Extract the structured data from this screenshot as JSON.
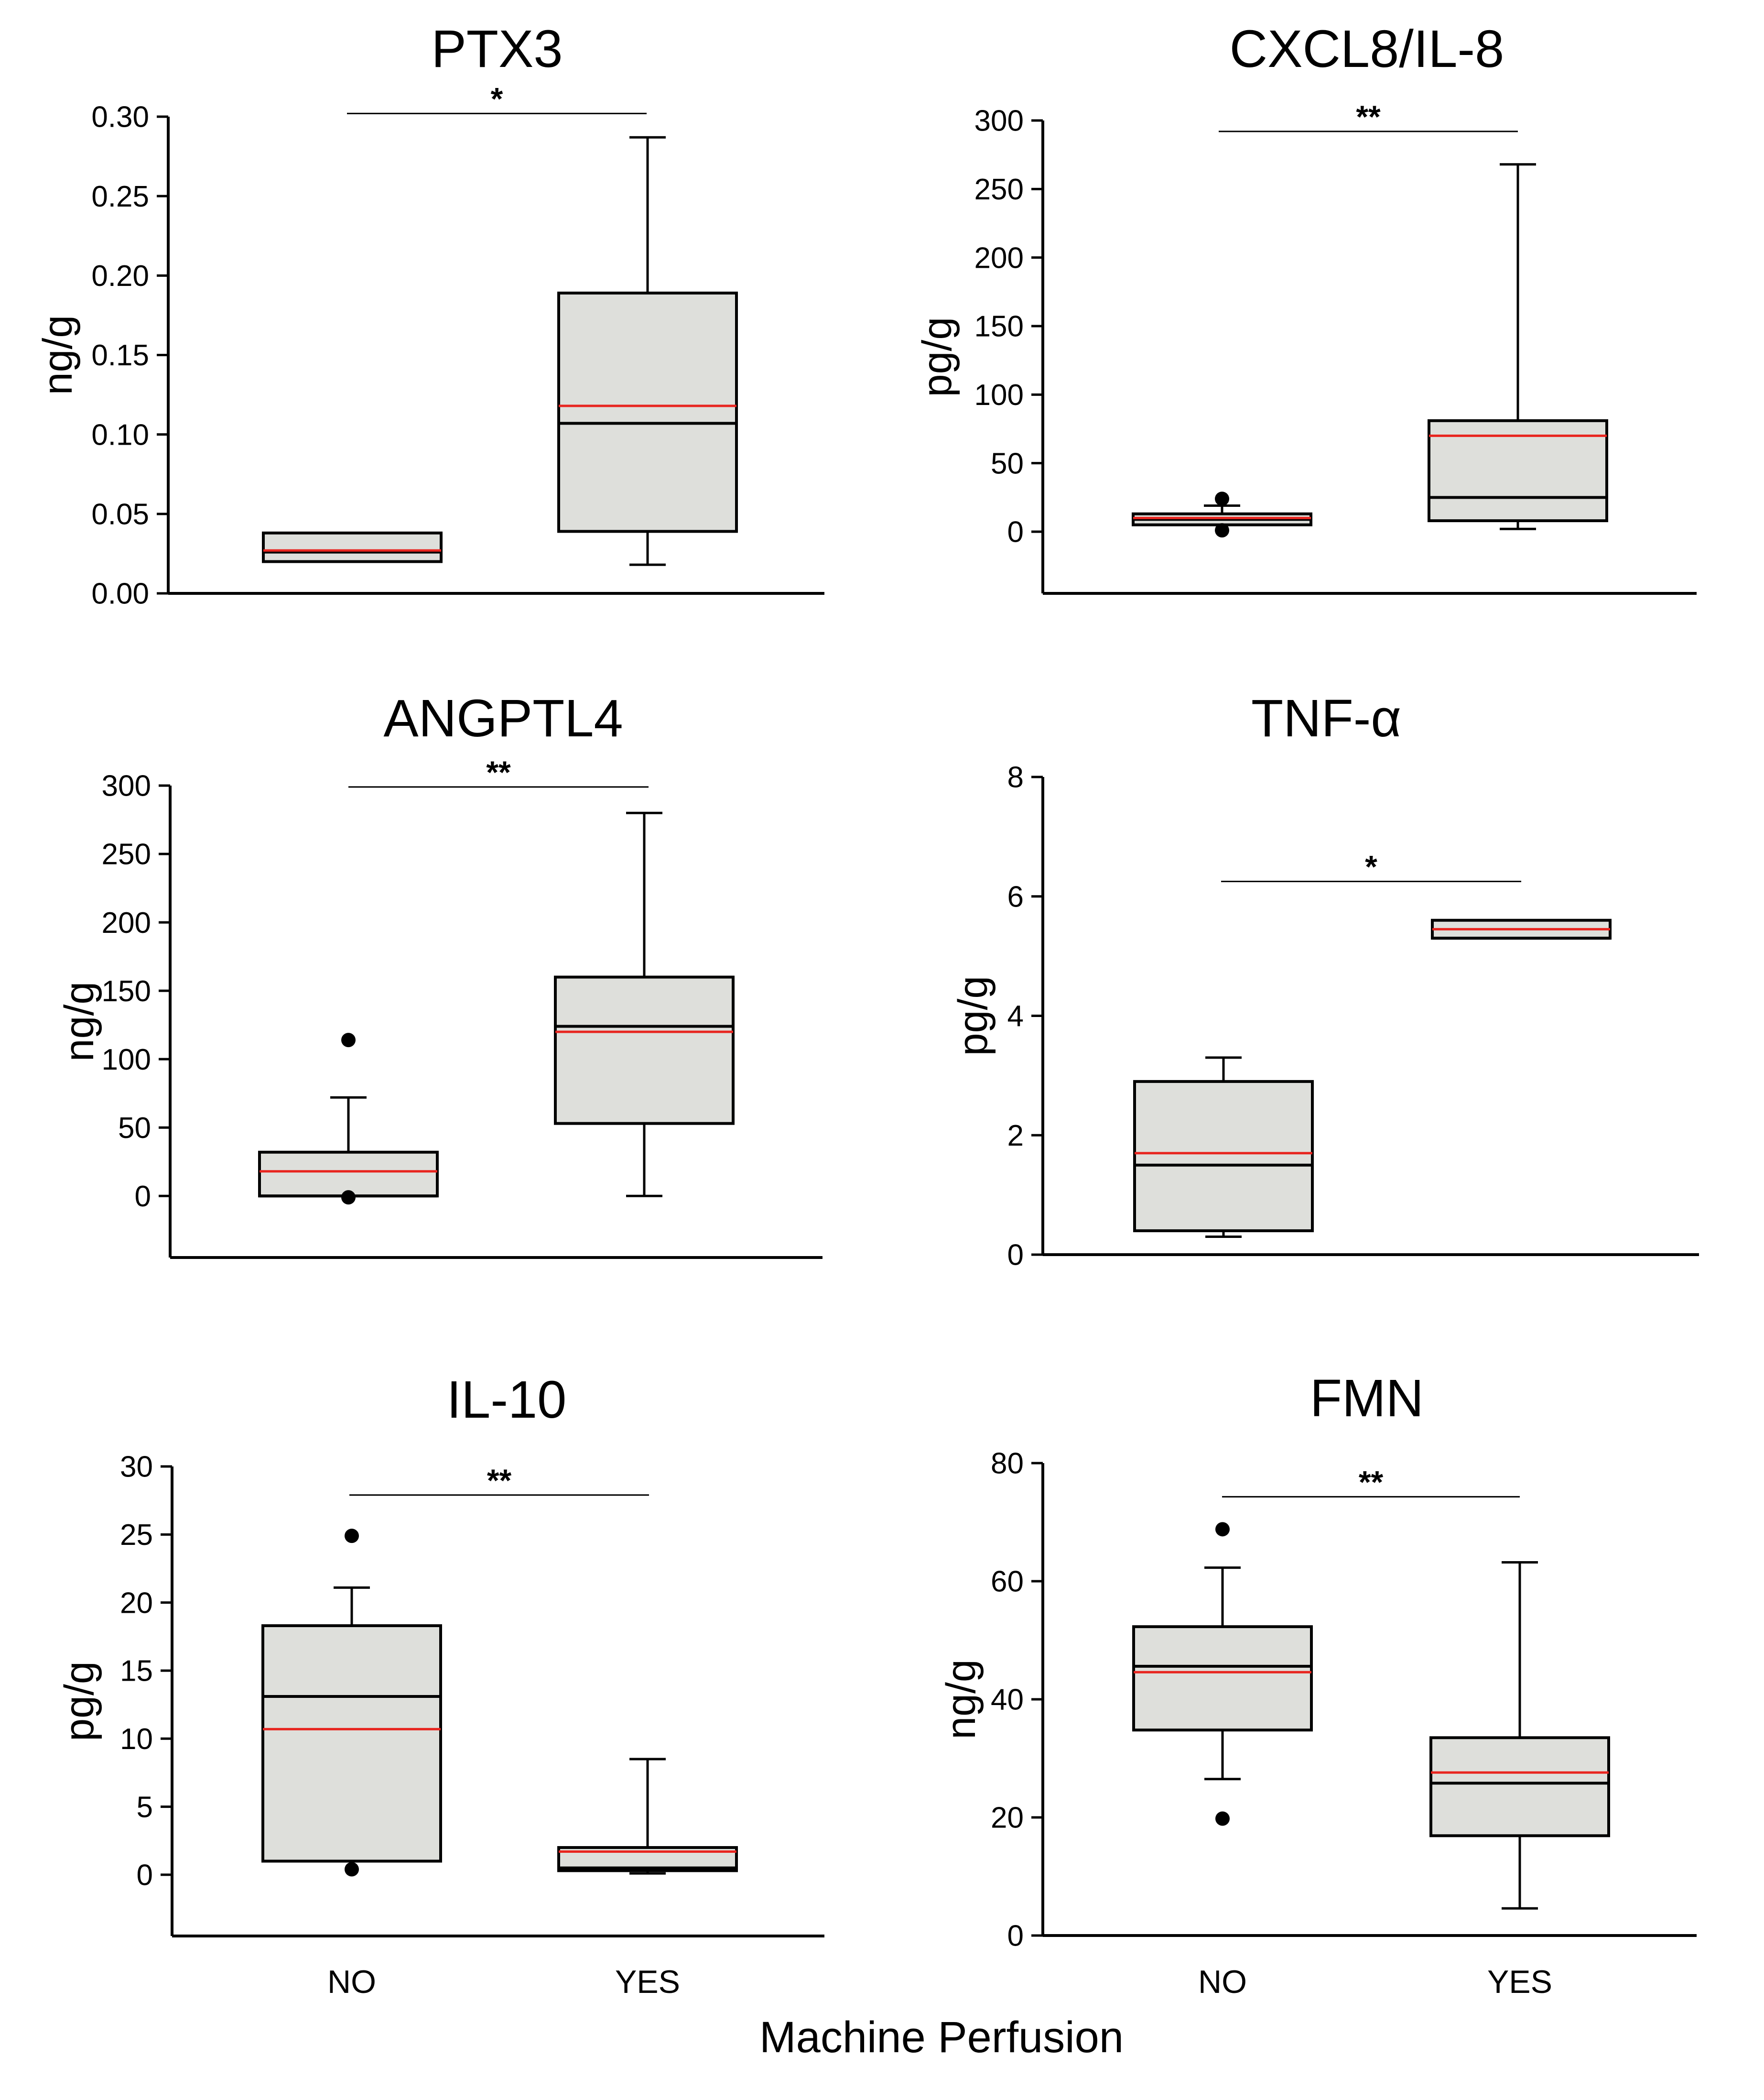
{
  "chart_data": [
    {
      "type": "box",
      "title": "PTX3",
      "ylabel": "ng/g",
      "ylim": [
        0,
        0.3
      ],
      "yticks": [
        0.0,
        0.05,
        0.1,
        0.15,
        0.2,
        0.25,
        0.3
      ],
      "ytick_labels": [
        "0.00",
        "0.05",
        "0.10",
        "0.15",
        "0.20",
        "0.25",
        "0.30"
      ],
      "categories": [
        "NO",
        "YES"
      ],
      "boxes": [
        {
          "category": "NO",
          "min": null,
          "q1": 0.02,
          "median": 0.026,
          "mean": 0.027,
          "q3": 0.038,
          "max": null,
          "outliers": []
        },
        {
          "category": "YES",
          "min": 0.018,
          "q1": 0.039,
          "median": 0.107,
          "mean": 0.118,
          "q3": 0.189,
          "max": 0.287,
          "outliers": []
        }
      ],
      "significance": {
        "label": "*",
        "y": 0.302
      }
    },
    {
      "type": "box",
      "title": "CXCL8/IL-8",
      "ylabel": "pg/g",
      "ylim": [
        -45,
        300
      ],
      "yticks": [
        0,
        50,
        100,
        150,
        200,
        250,
        300
      ],
      "ytick_labels": [
        "0",
        "50",
        "100",
        "150",
        "200",
        "250",
        "300"
      ],
      "categories": [
        "NO",
        "YES"
      ],
      "boxes": [
        {
          "category": "NO",
          "min": null,
          "q1": 5,
          "median": 9,
          "mean": 10,
          "q3": 13,
          "max": 19,
          "outliers": [
            24,
            1
          ]
        },
        {
          "category": "YES",
          "min": 2,
          "q1": 8,
          "median": 25,
          "mean": 70,
          "q3": 81,
          "max": 268,
          "outliers": []
        }
      ],
      "significance": {
        "label": "**",
        "y": 292
      }
    },
    {
      "type": "box",
      "title": "ANGPTL4",
      "ylabel": "ng/g",
      "ylim": [
        -45,
        300
      ],
      "yticks": [
        0,
        50,
        100,
        150,
        200,
        250,
        300
      ],
      "ytick_labels": [
        "0",
        "50",
        "100",
        "150",
        "200",
        "250",
        "300"
      ],
      "categories": [
        "NO",
        "YES"
      ],
      "boxes": [
        {
          "category": "NO",
          "min": null,
          "q1": 0,
          "median": 0,
          "mean": 18,
          "q3": 32,
          "max": 72,
          "outliers": [
            114,
            -1
          ]
        },
        {
          "category": "YES",
          "min": 0,
          "q1": 53,
          "median": 124,
          "mean": 120,
          "q3": 160,
          "max": 280,
          "outliers": []
        }
      ],
      "significance": {
        "label": "**",
        "y": 299
      }
    },
    {
      "type": "box",
      "title": "TNF-α",
      "ylabel": "pg/g",
      "ylim": [
        0,
        8
      ],
      "yticks": [
        0,
        2,
        4,
        6,
        8
      ],
      "ytick_labels": [
        "0",
        "2",
        "4",
        "6",
        "8"
      ],
      "categories": [
        "NO",
        "YES"
      ],
      "boxes": [
        {
          "category": "NO",
          "min": 0.3,
          "q1": 0.4,
          "median": 1.5,
          "mean": 1.7,
          "q3": 2.9,
          "max": 3.3,
          "outliers": []
        },
        {
          "category": "YES",
          "min": null,
          "q1": 5.3,
          "median": 5.3,
          "mean": 5.45,
          "q3": 5.6,
          "max": null,
          "outliers": []
        }
      ],
      "significance": {
        "label": "*",
        "y": 6.25
      }
    },
    {
      "type": "box",
      "title": "IL-10",
      "ylabel": "pg/g",
      "ylim": [
        -4.5,
        30
      ],
      "yticks": [
        0,
        5,
        10,
        15,
        20,
        25,
        30
      ],
      "ytick_labels": [
        "0",
        "5",
        "10",
        "15",
        "20",
        "25",
        "30"
      ],
      "categories": [
        "NO",
        "YES"
      ],
      "boxes": [
        {
          "category": "NO",
          "min": null,
          "q1": 1.0,
          "median": 13.1,
          "mean": 10.7,
          "q3": 18.3,
          "max": 21.1,
          "outliers": [
            24.9,
            0.4
          ]
        },
        {
          "category": "YES",
          "min": 0.1,
          "q1": 0.3,
          "median": 0.5,
          "mean": 1.7,
          "q3": 2.0,
          "max": 8.5,
          "outliers": []
        }
      ],
      "significance": {
        "label": "**",
        "y": 27.9
      }
    },
    {
      "type": "box",
      "title": "FMN",
      "ylabel": "ng/g",
      "ylim": [
        0,
        80
      ],
      "yticks": [
        0,
        20,
        40,
        60,
        80
      ],
      "ytick_labels": [
        "0",
        "20",
        "40",
        "60",
        "80"
      ],
      "categories": [
        "NO",
        "YES"
      ],
      "boxes": [
        {
          "category": "NO",
          "min": 26.5,
          "q1": 34.8,
          "median": 45.6,
          "mean": 44.6,
          "q3": 52.3,
          "max": 62.3,
          "outliers": [
            68.8,
            19.8
          ]
        },
        {
          "category": "YES",
          "min": 4.6,
          "q1": 16.9,
          "median": 25.8,
          "mean": 27.6,
          "q3": 33.5,
          "max": 63.2,
          "outliers": []
        }
      ],
      "significance": {
        "label": "**",
        "y": 74.3
      }
    }
  ],
  "xlabel": "Machine Perfusion",
  "colors": {
    "box_fill": "#dedfdb",
    "median_line": "#000000",
    "mean_line": "#e8251f",
    "axis": "#000000"
  }
}
